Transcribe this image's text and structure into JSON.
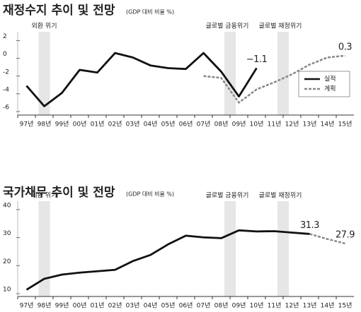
{
  "chart_data": [
    {
      "type": "line",
      "title": "재정수지 추이 및 전망",
      "subtitle": "(GDP 대비 비율 %)",
      "categories": [
        "97년",
        "98년",
        "99년",
        "00년",
        "01년",
        "02년",
        "03년",
        "04년",
        "05년",
        "06년",
        "07년",
        "08년",
        "09년",
        "10년",
        "11년",
        "12년",
        "13년",
        "14년",
        "15년"
      ],
      "annotations": [
        "외환 위기",
        "글로벌 금융위기",
        "글로벌 재정위기"
      ],
      "ylim": [
        -6.4,
        3
      ],
      "yticks": [
        2,
        0,
        -2,
        -4,
        -6
      ],
      "legend": "lower right",
      "series": [
        {
          "name": "실적",
          "color": "#111111",
          "style": "solid",
          "values": [
            -3.1,
            -5.4,
            -3.9,
            -1.3,
            -1.6,
            0.6,
            0.1,
            -0.8,
            -1.1,
            -1.2,
            0.6,
            -1.5,
            -4.3,
            -1.1,
            null,
            null,
            null,
            null,
            null
          ],
          "value_labels": [
            null,
            null,
            null,
            null,
            null,
            null,
            null,
            null,
            null,
            null,
            null,
            null,
            null,
            "−1.1",
            null,
            null,
            null,
            null,
            null
          ]
        },
        {
          "name": "계획",
          "color": "#888888",
          "style": "dashed",
          "values": [
            null,
            null,
            null,
            null,
            null,
            null,
            null,
            null,
            null,
            null,
            -2.0,
            -2.2,
            -5.0,
            -3.5,
            -2.7,
            -1.8,
            -0.7,
            0.1,
            0.3
          ],
          "value_labels": [
            null,
            null,
            null,
            null,
            null,
            null,
            null,
            null,
            null,
            null,
            null,
            null,
            null,
            null,
            null,
            null,
            null,
            null,
            "0.3"
          ]
        }
      ]
    },
    {
      "type": "line",
      "title": "국가채무 추이 및 전망",
      "subtitle": "(GDP 대비 비율 %)",
      "categories": [
        "97년",
        "98년",
        "99년",
        "00년",
        "01년",
        "02년",
        "03년",
        "04년",
        "05년",
        "06년",
        "07년",
        "08년",
        "09년",
        "10년",
        "11년",
        "12년",
        "13년",
        "14년",
        "15년"
      ],
      "annotations": [
        "외환 위기",
        "글로벌 금융위기",
        "글로벌 재정위기"
      ],
      "ylim": [
        9,
        43
      ],
      "yticks": [
        40,
        30,
        20,
        10
      ],
      "series": [
        {
          "color": "#111111",
          "style": "solid",
          "values": [
            11.4,
            15.3,
            16.8,
            17.5,
            18.0,
            18.5,
            21.6,
            23.8,
            27.6,
            30.7,
            30.1,
            29.8,
            32.6,
            32.2,
            32.3,
            31.8,
            31.3,
            null,
            null
          ],
          "value_labels": [
            null,
            null,
            null,
            null,
            null,
            null,
            null,
            null,
            null,
            null,
            null,
            null,
            null,
            null,
            null,
            null,
            "31.3",
            null,
            null
          ]
        },
        {
          "color": "#888888",
          "style": "dashed",
          "values": [
            null,
            null,
            null,
            null,
            null,
            null,
            null,
            null,
            null,
            null,
            null,
            null,
            null,
            null,
            null,
            null,
            31.3,
            29.5,
            27.9
          ],
          "value_labels": [
            null,
            null,
            null,
            null,
            null,
            null,
            null,
            null,
            null,
            null,
            null,
            null,
            null,
            null,
            null,
            null,
            null,
            null,
            "27.9"
          ]
        }
      ]
    }
  ]
}
